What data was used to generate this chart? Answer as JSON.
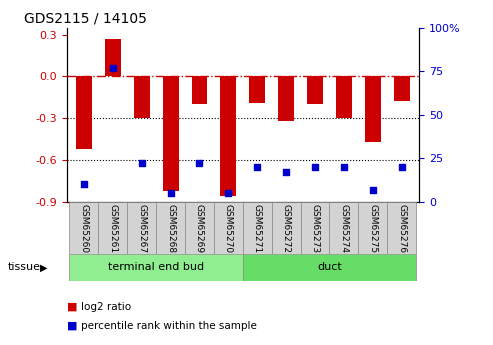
{
  "title": "GDS2115 / 14105",
  "samples": [
    "GSM65260",
    "GSM65261",
    "GSM65267",
    "GSM65268",
    "GSM65269",
    "GSM65270",
    "GSM65271",
    "GSM65272",
    "GSM65273",
    "GSM65274",
    "GSM65275",
    "GSM65276"
  ],
  "log2_ratio": [
    -0.52,
    0.27,
    -0.3,
    -0.82,
    -0.2,
    -0.86,
    -0.19,
    -0.32,
    -0.2,
    -0.3,
    -0.47,
    -0.18
  ],
  "percentile": [
    10,
    77,
    22,
    5,
    22,
    5,
    20,
    17,
    20,
    20,
    7,
    20
  ],
  "groups": [
    {
      "label": "terminal end bud",
      "start": 0,
      "end": 6,
      "color": "#90EE90"
    },
    {
      "label": "duct",
      "start": 6,
      "end": 12,
      "color": "#66DD66"
    }
  ],
  "bar_color": "#CC0000",
  "dot_color": "#0000CC",
  "ylim": [
    -0.9,
    0.35
  ],
  "y2lim": [
    0,
    100
  ],
  "yticks": [
    -0.9,
    -0.6,
    -0.3,
    0.0,
    0.3
  ],
  "y2ticks": [
    0,
    25,
    50,
    75,
    100
  ],
  "hline_y": 0.0,
  "hline_color": "#CC0000",
  "dotted_lines": [
    -0.3,
    -0.6
  ],
  "legend_log2": "log2 ratio",
  "legend_pct": "percentile rank within the sample",
  "tissue_label": "tissue",
  "bg_color": "#FFFFFF",
  "plot_bg": "#FFFFFF",
  "grid_color": "#000000",
  "label_bg": "#D3D3D3"
}
